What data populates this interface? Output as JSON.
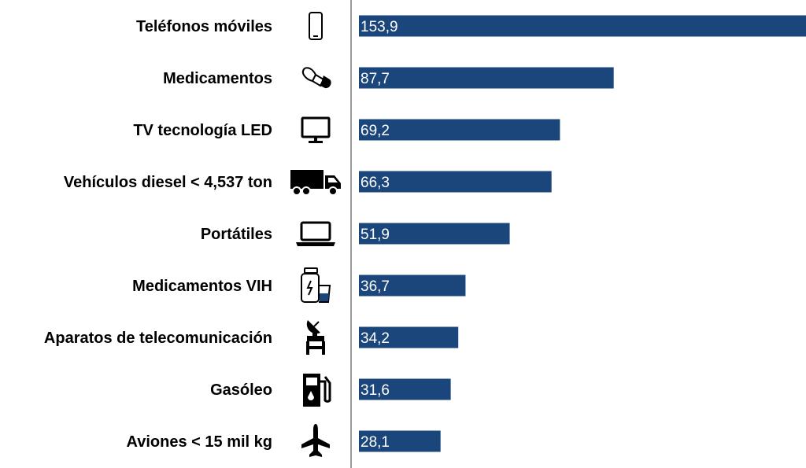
{
  "chart_data": {
    "type": "bar",
    "orientation": "horizontal",
    "categories": [
      "Teléfonos móviles",
      "Medicamentos",
      "TV tecnología LED",
      "Vehículos diesel < 4,537 ton",
      "Portátiles",
      "Medicamentos VIH",
      "Aparatos de telecomunicación",
      "Gasóleo",
      "Aviones < 15 mil kg"
    ],
    "values": [
      153.9,
      87.7,
      69.2,
      66.3,
      51.9,
      36.7,
      34.2,
      31.6,
      28.1
    ],
    "value_labels": [
      "153,9",
      "87,7",
      "69,2",
      "66,3",
      "51,9",
      "36,7",
      "34,2",
      "31,6",
      "28,1"
    ],
    "icons": [
      "mobile-phone-icon",
      "pill-icon",
      "tv-monitor-icon",
      "truck-icon",
      "laptop-icon",
      "medicine-bottle-icon",
      "satellite-dish-icon",
      "fuel-pump-icon",
      "airplane-icon"
    ],
    "xlim": [
      0,
      153.9
    ],
    "grid": false,
    "legend": "none",
    "colors": {
      "bar": "#1b467c",
      "axis": "#9b9b9b",
      "label": "#000000",
      "value_text": "#ffffff"
    }
  }
}
